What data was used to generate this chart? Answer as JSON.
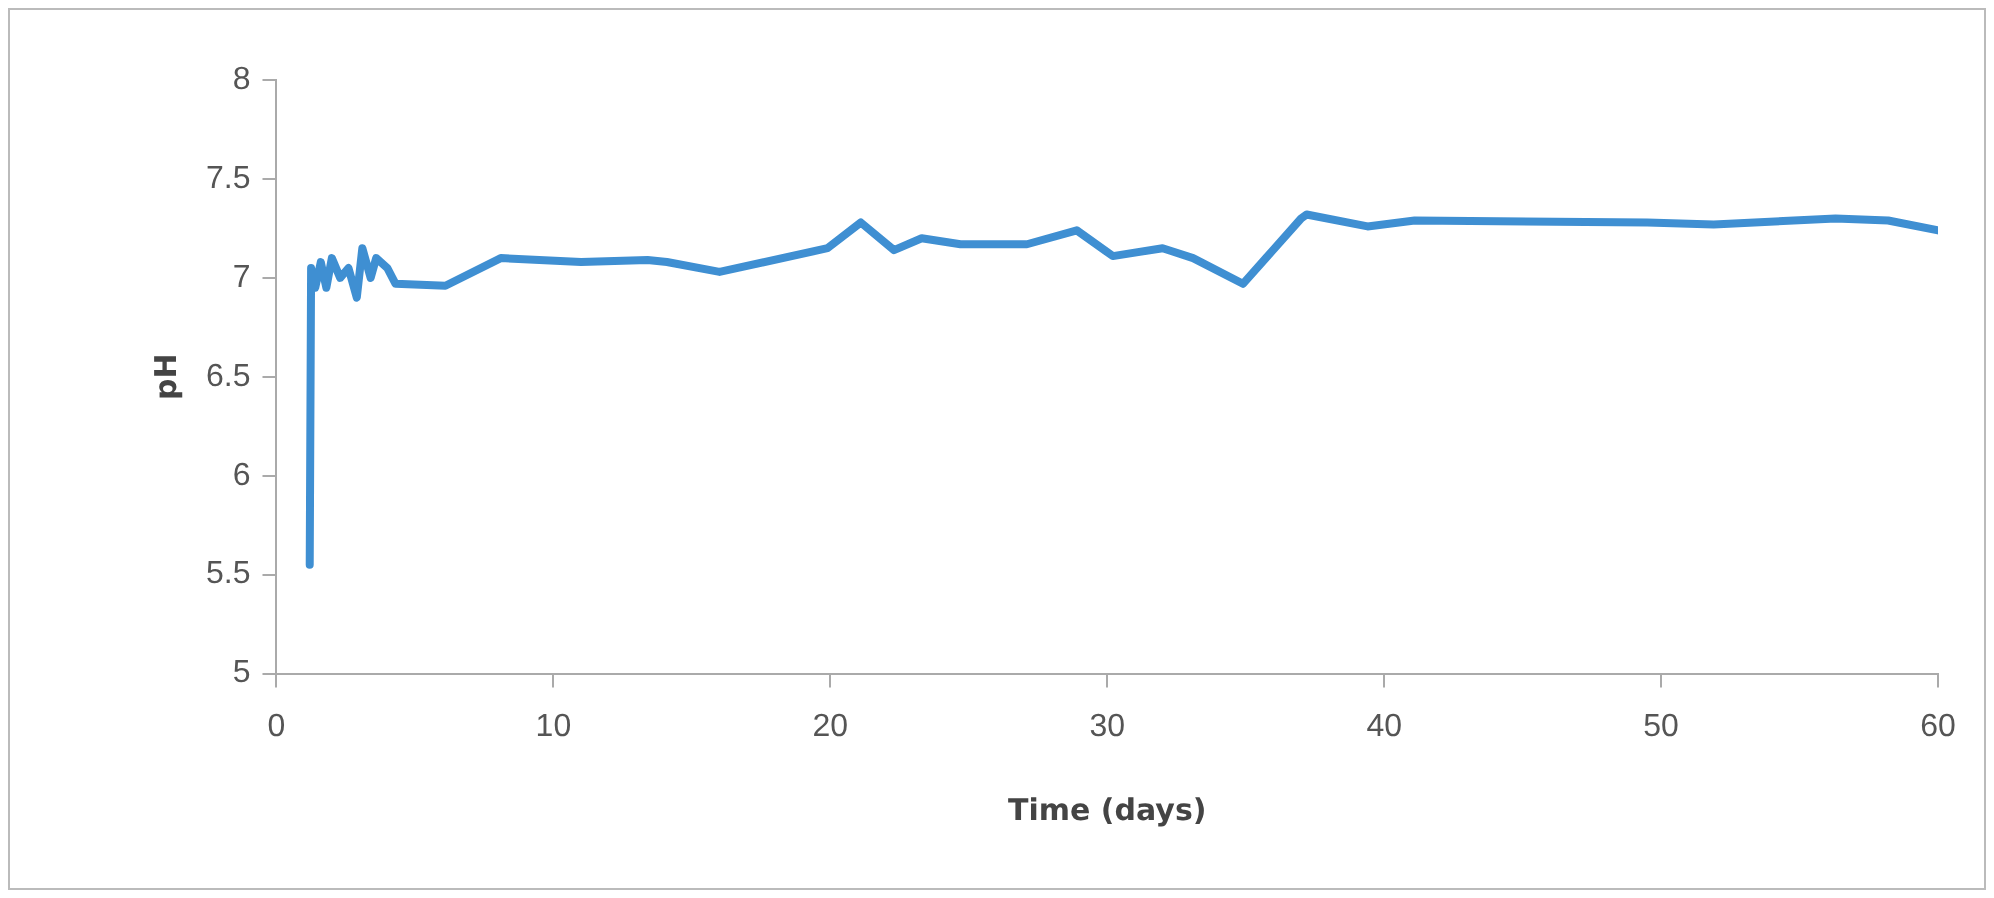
{
  "chart_data": {
    "type": "line",
    "xlabel": "Time (days)",
    "ylabel": "pH",
    "series": [
      {
        "color": "#3f8fd2",
        "x": [
          1.2,
          1.25,
          1.4,
          1.6,
          1.8,
          2.0,
          2.3,
          2.6,
          2.9,
          3.1,
          3.4,
          3.6,
          4.0,
          4.3,
          6.1,
          8.1,
          11,
          13.4,
          14.1,
          16,
          19.9,
          21.1,
          22.3,
          23.3,
          24.7,
          27.1,
          28.9,
          30.2,
          32,
          33.1,
          34.9,
          37,
          37.2,
          39.4,
          41.1,
          49.5,
          51.9,
          56.3,
          58.2,
          60
        ],
        "values": [
          5.55,
          7.05,
          6.95,
          7.08,
          6.95,
          7.1,
          7.0,
          7.05,
          6.9,
          7.15,
          7.0,
          7.1,
          7.05,
          6.97,
          6.96,
          7.1,
          7.08,
          7.09,
          7.08,
          7.03,
          7.15,
          7.28,
          7.14,
          7.2,
          7.17,
          7.17,
          7.24,
          7.11,
          7.15,
          7.1,
          6.97,
          7.3,
          7.32,
          7.26,
          7.29,
          7.28,
          7.27,
          7.3,
          7.29,
          7.24
        ]
      }
    ],
    "xlim": [
      0,
      60
    ],
    "xticks": [
      0,
      10,
      20,
      30,
      40,
      50,
      60
    ],
    "ylim": [
      5,
      8
    ],
    "yticks": [
      5,
      5.5,
      6,
      6.5,
      7,
      7.5,
      8
    ],
    "grid": false,
    "legend": false,
    "marker": "none",
    "line_style": "solid"
  }
}
